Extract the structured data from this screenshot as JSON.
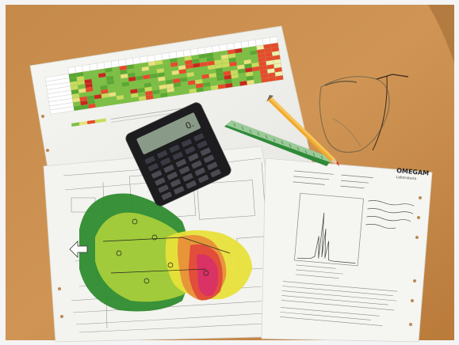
{
  "photo": {
    "frame_color": "#f4f4f4",
    "desk_color": "#c98d4a",
    "desk_shadow": "#a96d30"
  },
  "report": {
    "logo_text": "OMEGAM",
    "logo_subtext": "Laboratoria"
  },
  "calculator": {
    "display_value": "0."
  },
  "heatmap_zones": {
    "colors": [
      "#2e8b2e",
      "#a6cf3a",
      "#e8e03a",
      "#e8a03a",
      "#e04a3a",
      "#d8306a"
    ]
  },
  "table_sheet": {
    "cell_colors": [
      "#7cc043",
      "#5aa832",
      "#c8dc5a",
      "#e8e27a",
      "#e84a2a",
      "#c8281c",
      "#f0f0b0"
    ]
  }
}
